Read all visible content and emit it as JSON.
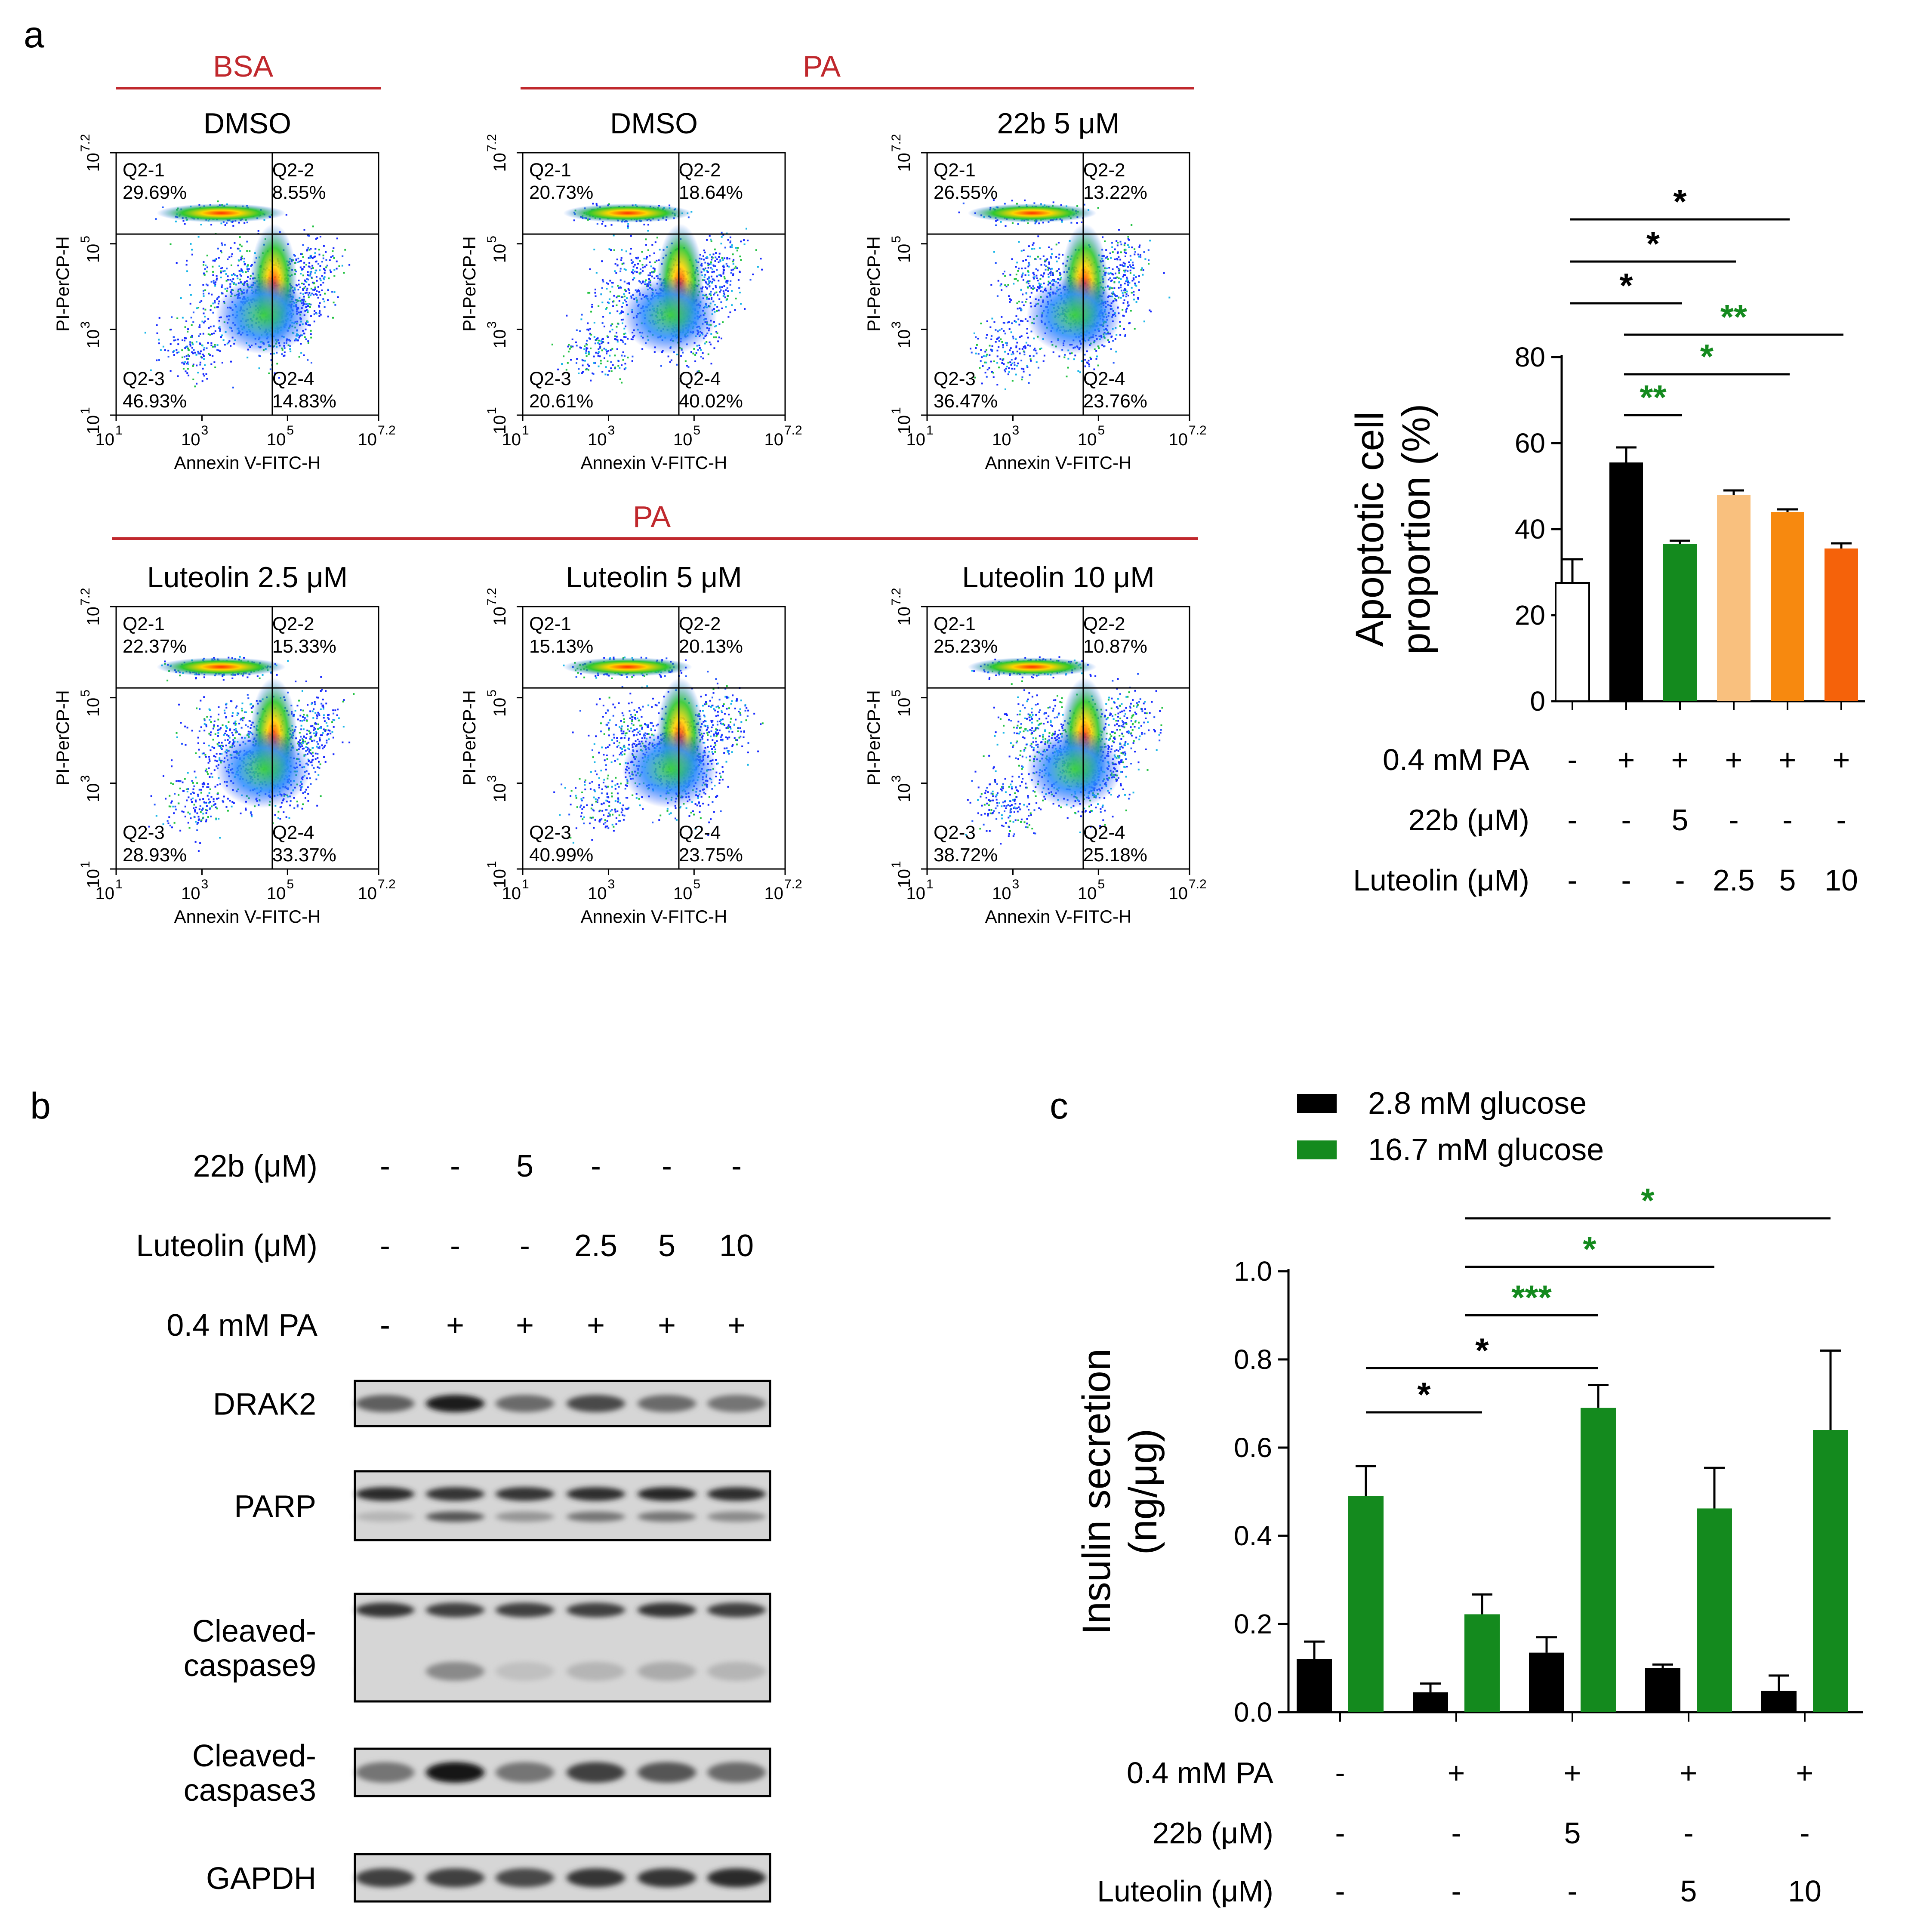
{
  "panels": {
    "a": "a",
    "b": "b",
    "c": "c"
  },
  "colors": {
    "red_label": "#c0282d",
    "green": "#148a1e",
    "black": "#000000",
    "light_orange": "#f9c07e",
    "orange": "#f7890f",
    "dark_orange": "#f5620a"
  },
  "flow": {
    "group_labels": {
      "bsa": "BSA",
      "pa_top": "PA",
      "pa_bottom": "PA"
    },
    "x_axis_label": "Annexin V-FITC-H",
    "y_axis_label": "PI-PerCP-H",
    "tick_base": "10",
    "tick_exps": [
      "1",
      "3",
      "5",
      "7.2"
    ],
    "plots": [
      {
        "title": "DMSO",
        "q": [
          {
            "name": "Q2-1",
            "value": "29.69%"
          },
          {
            "name": "Q2-2",
            "value": "8.55%"
          },
          {
            "name": "Q2-3",
            "value": "46.93%"
          },
          {
            "name": "Q2-4",
            "value": "14.83%"
          }
        ]
      },
      {
        "title": "DMSO",
        "q": [
          {
            "name": "Q2-1",
            "value": "20.73%"
          },
          {
            "name": "Q2-2",
            "value": "18.64%"
          },
          {
            "name": "Q2-3",
            "value": "20.61%"
          },
          {
            "name": "Q2-4",
            "value": "40.02%"
          }
        ]
      },
      {
        "title": "22b 5 μM",
        "q": [
          {
            "name": "Q2-1",
            "value": "26.55%"
          },
          {
            "name": "Q2-2",
            "value": "13.22%"
          },
          {
            "name": "Q2-3",
            "value": "36.47%"
          },
          {
            "name": "Q2-4",
            "value": "23.76%"
          }
        ]
      },
      {
        "title": "Luteolin 2.5 μM",
        "q": [
          {
            "name": "Q2-1",
            "value": "22.37%"
          },
          {
            "name": "Q2-2",
            "value": "15.33%"
          },
          {
            "name": "Q2-3",
            "value": "28.93%"
          },
          {
            "name": "Q2-4",
            "value": "33.37%"
          }
        ]
      },
      {
        "title": "Luteolin 5 μM",
        "q": [
          {
            "name": "Q2-1",
            "value": "15.13%"
          },
          {
            "name": "Q2-2",
            "value": "20.13%"
          },
          {
            "name": "Q2-3",
            "value": "40.99%"
          },
          {
            "name": "Q2-4",
            "value": "23.75%"
          }
        ]
      },
      {
        "title": "Luteolin 10 μM",
        "q": [
          {
            "name": "Q2-1",
            "value": "25.23%"
          },
          {
            "name": "Q2-2",
            "value": "10.87%"
          },
          {
            "name": "Q2-3",
            "value": "38.72%"
          },
          {
            "name": "Q2-4",
            "value": "25.18%"
          }
        ]
      }
    ]
  },
  "western": {
    "conditions": [
      {
        "label": "22b (μM)",
        "values": [
          "-",
          "-",
          "5",
          "-",
          "-",
          "-"
        ]
      },
      {
        "label": "Luteolin (μM)",
        "values": [
          "-",
          "-",
          "-",
          "2.5",
          "5",
          "10"
        ]
      },
      {
        "label": "0.4 mM PA",
        "values": [
          "-",
          "+",
          "+",
          "+",
          "+",
          "+"
        ]
      }
    ],
    "bands": {
      "drak2": "DRAK2",
      "parp": "PARP",
      "casp9": [
        "Cleaved-",
        "caspase9"
      ],
      "casp3": [
        "Cleaved-",
        "caspase3"
      ],
      "gapdh": "GAPDH"
    },
    "intensity": {
      "drak2": [
        0.65,
        0.95,
        0.6,
        0.75,
        0.6,
        0.55
      ],
      "parp_top": [
        0.9,
        0.85,
        0.85,
        0.88,
        0.92,
        0.88
      ],
      "parp_bottom": [
        0.25,
        0.7,
        0.4,
        0.55,
        0.55,
        0.45
      ],
      "casp9_top": [
        0.85,
        0.8,
        0.8,
        0.8,
        0.85,
        0.8
      ],
      "casp9_bottom": [
        0.1,
        0.45,
        0.2,
        0.25,
        0.3,
        0.25
      ],
      "casp3": [
        0.55,
        1.0,
        0.55,
        0.8,
        0.7,
        0.6
      ],
      "gapdh": [
        0.8,
        0.8,
        0.75,
        0.85,
        0.85,
        0.9
      ]
    }
  },
  "chart_data": [
    {
      "type": "bar",
      "ylabel": [
        "Apoptotic cell",
        "proportion (%)"
      ],
      "ylim": [
        0,
        80
      ],
      "yticks": [
        "0",
        "20",
        "40",
        "60",
        "80"
      ],
      "values": [
        27.5,
        55.5,
        36.5,
        48.0,
        44.0,
        35.5
      ],
      "errors": [
        5.5,
        3.5,
        0.8,
        1.0,
        0.6,
        1.2
      ],
      "bar_colors": [
        "#ffffff",
        "#000000",
        "#148a1e",
        "#f9c07e",
        "#f7890f",
        "#f5620a"
      ],
      "conditions": [
        {
          "label": "0.4 mM PA",
          "values": [
            "-",
            "+",
            "+",
            "+",
            "+",
            "+"
          ]
        },
        {
          "label": "22b (μM)",
          "values": [
            "-",
            "-",
            "5",
            "-",
            "-",
            "-"
          ]
        },
        {
          "label": "Luteolin (μM)",
          "values": [
            "-",
            "-",
            "-",
            "2.5",
            "5",
            "10"
          ]
        }
      ],
      "significance": [
        {
          "from": 1,
          "to": 2,
          "label": "**",
          "color": "green",
          "level": 0
        },
        {
          "from": 1,
          "to": 4,
          "label": "*",
          "color": "green",
          "level": 1
        },
        {
          "from": 1,
          "to": 5,
          "label": "**",
          "color": "green",
          "level": 2
        },
        {
          "from": 0,
          "to": 2,
          "label": "*",
          "color": "black",
          "level": 3
        },
        {
          "from": 0,
          "to": 3,
          "label": "*",
          "color": "black",
          "level": 4
        },
        {
          "from": 0,
          "to": 4,
          "label": "*",
          "color": "black",
          "level": 5
        }
      ]
    },
    {
      "type": "bar",
      "ylabel": [
        "Insulin secretion",
        "(ng/μg)"
      ],
      "ylim": [
        0,
        1.0
      ],
      "yticks": [
        "0.0",
        "0.2",
        "0.4",
        "0.6",
        "0.8",
        "1.0"
      ],
      "series": [
        {
          "name": "2.8 mM glucose",
          "color": "#000000",
          "values": [
            0.12,
            0.045,
            0.135,
            0.1,
            0.048
          ],
          "errors": [
            0.04,
            0.02,
            0.035,
            0.008,
            0.035
          ]
        },
        {
          "name": "16.7 mM glucose",
          "color": "#148a1e",
          "values": [
            0.49,
            0.222,
            0.69,
            0.462,
            0.64
          ],
          "errors": [
            0.068,
            0.045,
            0.052,
            0.092,
            0.18
          ]
        }
      ],
      "conditions": [
        {
          "label": "0.4 mM PA",
          "values": [
            "-",
            "+",
            "+",
            "+",
            "+"
          ]
        },
        {
          "label": "22b (μM)",
          "values": [
            "-",
            "-",
            "5",
            "-",
            "-"
          ]
        },
        {
          "label": "Luteolin (μM)",
          "values": [
            "-",
            "-",
            "-",
            "5",
            "10"
          ]
        }
      ],
      "significance": [
        {
          "from": 0,
          "to": 1,
          "label": "*",
          "color": "black",
          "y": 0.68
        },
        {
          "from": 0,
          "to": 2,
          "label": "*",
          "color": "black",
          "y": 0.78
        },
        {
          "from": 1,
          "to": 2,
          "label": "***",
          "color": "green",
          "y": 0.9
        },
        {
          "from": 1,
          "to": 3,
          "label": "*",
          "color": "green",
          "y": 1.01
        },
        {
          "from": 1,
          "to": 4,
          "label": "*",
          "color": "green",
          "y": 1.12
        }
      ]
    }
  ]
}
